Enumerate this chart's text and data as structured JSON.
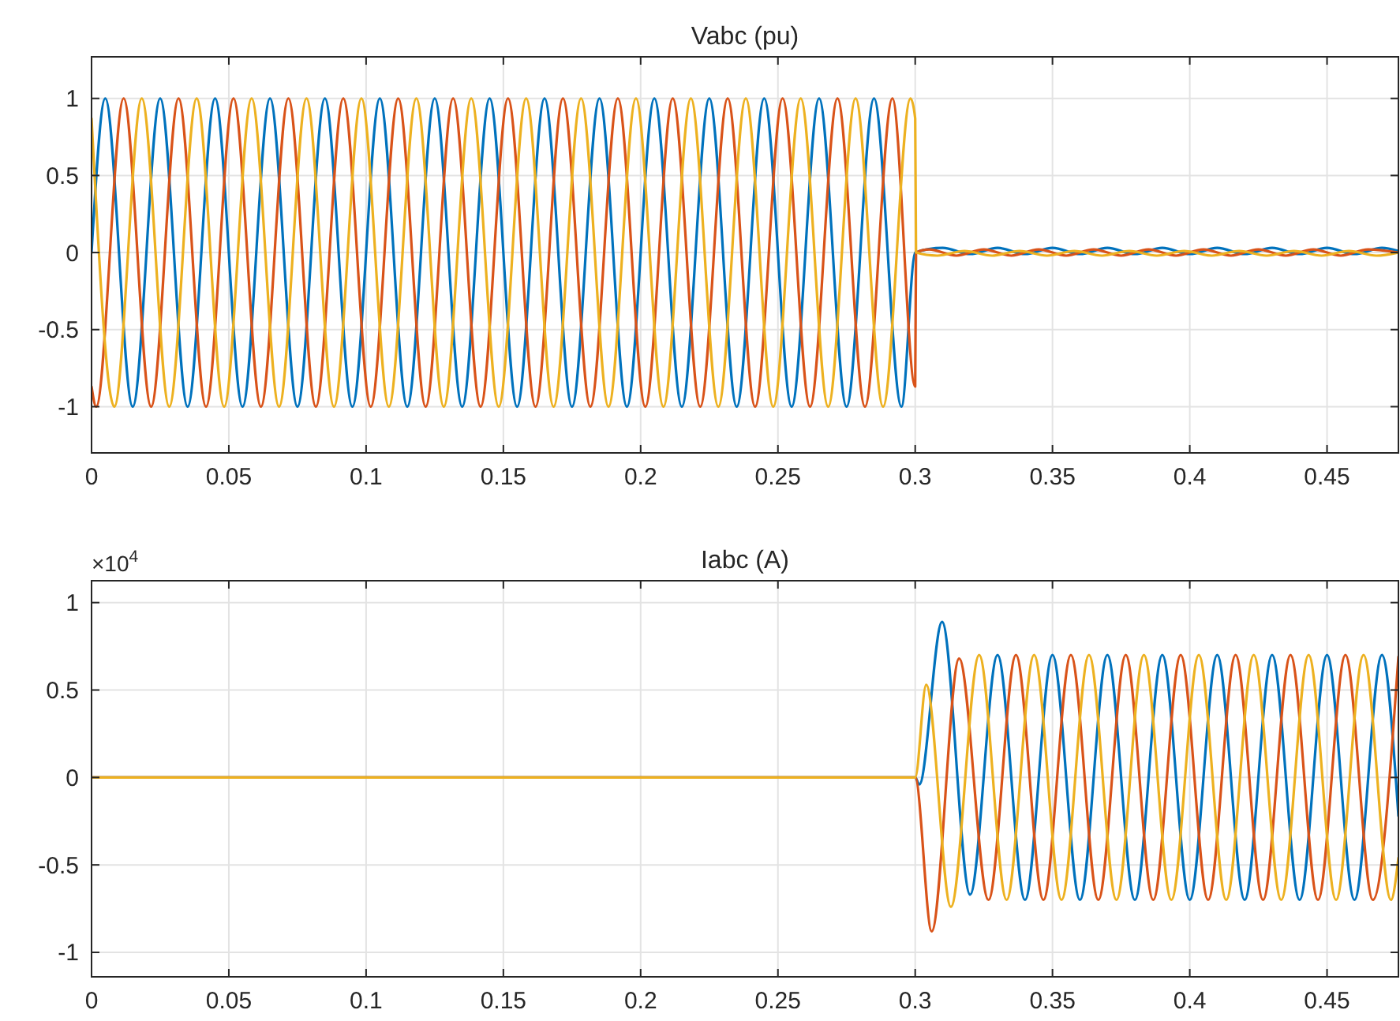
{
  "chart_data": [
    {
      "type": "line",
      "title": "Vabc (pu)",
      "xlim": [
        0,
        0.476
      ],
      "ylim": [
        -1.3,
        1.27
      ],
      "xticks": [
        0,
        0.05,
        0.1,
        0.15,
        0.2,
        0.25,
        0.3,
        0.35,
        0.4,
        0.45
      ],
      "yticks": [
        -1,
        -0.5,
        0,
        0.5,
        1
      ],
      "grid": true,
      "series": [
        {
          "color": "#0072bd",
          "x": [
            0,
            0.005,
            0.015,
            0.025,
            0.035,
            0.045,
            0.055,
            0.065,
            0.075,
            0.085,
            0.095,
            0.105,
            0.115,
            0.125,
            0.135,
            0.145,
            0.155,
            0.165,
            0.175,
            0.185,
            0.195,
            0.205,
            0.215,
            0.225,
            0.235,
            0.245,
            0.255,
            0.265,
            0.275,
            0.285,
            0.295,
            0.3,
            0.31,
            0.32,
            0.33,
            0.34,
            0.35,
            0.36,
            0.37,
            0.38,
            0.39,
            0.4,
            0.41,
            0.42,
            0.43,
            0.44,
            0.45,
            0.46,
            0.47,
            0.476
          ],
          "values": [
            0,
            1,
            -1,
            1,
            -1,
            1,
            -1,
            1,
            -1,
            1,
            -1,
            1,
            -1,
            1,
            -1,
            1,
            -1,
            1,
            -1,
            1,
            -1,
            1,
            -1,
            1,
            -1,
            1,
            -1,
            1,
            -1,
            1,
            -1,
            0,
            0.03,
            -0.01,
            0.03,
            -0.01,
            0.03,
            -0.01,
            0.03,
            -0.01,
            0.03,
            -0.01,
            0.03,
            -0.01,
            0.03,
            -0.01,
            0.03,
            -0.01,
            0.03,
            0.01
          ]
        },
        {
          "color": "#d95319",
          "x": [
            0,
            0.0017,
            0.0117,
            0.0217,
            0.0317,
            0.0417,
            0.0517,
            0.0617,
            0.0717,
            0.0817,
            0.0917,
            0.1017,
            0.1117,
            0.1217,
            0.1317,
            0.1417,
            0.1517,
            0.1617,
            0.1717,
            0.1817,
            0.1917,
            0.2017,
            0.2117,
            0.2217,
            0.2317,
            0.2417,
            0.2517,
            0.2617,
            0.2717,
            0.2817,
            0.2917,
            0.3,
            0.3003,
            0.305,
            0.315,
            0.325,
            0.335,
            0.345,
            0.355,
            0.365,
            0.375,
            0.385,
            0.395,
            0.405,
            0.415,
            0.425,
            0.435,
            0.445,
            0.455,
            0.465,
            0.476
          ],
          "values": [
            -0.87,
            -1,
            1,
            -1,
            1,
            -1,
            1,
            -1,
            1,
            -1,
            1,
            -1,
            1,
            -1,
            1,
            -1,
            1,
            -1,
            1,
            -1,
            1,
            -1,
            1,
            -1,
            1,
            -1,
            1,
            -1,
            1,
            -1,
            1,
            -0.87,
            0,
            0.02,
            -0.02,
            0.02,
            -0.02,
            0.02,
            -0.02,
            0.02,
            -0.02,
            0.02,
            -0.02,
            0.02,
            -0.02,
            0.02,
            -0.02,
            0.02,
            -0.02,
            0.02,
            0
          ]
        },
        {
          "color": "#edb120",
          "x": [
            0,
            0.0083,
            0.0183,
            0.0283,
            0.0383,
            0.0483,
            0.0583,
            0.0683,
            0.0783,
            0.0883,
            0.0983,
            0.1083,
            0.1183,
            0.1283,
            0.1383,
            0.1483,
            0.1583,
            0.1683,
            0.1783,
            0.1883,
            0.1983,
            0.2083,
            0.2183,
            0.2283,
            0.2383,
            0.2483,
            0.2583,
            0.2683,
            0.2783,
            0.2883,
            0.2983,
            0.3,
            0.3003,
            0.308,
            0.318,
            0.328,
            0.338,
            0.348,
            0.358,
            0.368,
            0.378,
            0.388,
            0.398,
            0.408,
            0.418,
            0.428,
            0.438,
            0.448,
            0.458,
            0.468,
            0.476
          ],
          "values": [
            0.87,
            -1,
            1,
            -1,
            1,
            -1,
            1,
            -1,
            1,
            -1,
            1,
            -1,
            1,
            -1,
            1,
            -1,
            1,
            -1,
            1,
            -1,
            1,
            -1,
            1,
            -1,
            1,
            -1,
            1,
            -1,
            1,
            -1,
            1,
            0.87,
            0,
            -0.02,
            0.01,
            -0.02,
            0.01,
            -0.02,
            0.01,
            -0.02,
            0.01,
            -0.02,
            0.01,
            -0.02,
            0.01,
            -0.02,
            0.01,
            -0.02,
            0.01,
            -0.02,
            0
          ]
        }
      ]
    },
    {
      "type": "line",
      "title": "Iabc (A)",
      "annotations": [
        "×10$^{4}$"
      ],
      "xlim": [
        0,
        0.476
      ],
      "ylim": [
        -1.14,
        1.125
      ],
      "xticks": [
        0,
        0.05,
        0.1,
        0.15,
        0.2,
        0.25,
        0.3,
        0.35,
        0.4,
        0.45
      ],
      "yticks": [
        -1,
        -0.5,
        0,
        0.5,
        1
      ],
      "grid": true,
      "series": [
        {
          "color": "#0072bd",
          "x": [
            0,
            0.3,
            0.3015,
            0.3098,
            0.32,
            0.33,
            0.34,
            0.35,
            0.36,
            0.37,
            0.38,
            0.39,
            0.4,
            0.41,
            0.42,
            0.43,
            0.44,
            0.45,
            0.46,
            0.47,
            0.476
          ],
          "values": [
            0,
            0,
            -0.04,
            0.89,
            -0.67,
            0.7,
            -0.7,
            0.7,
            -0.7,
            0.7,
            -0.7,
            0.7,
            -0.7,
            0.7,
            -0.7,
            0.7,
            -0.7,
            0.7,
            -0.7,
            0.7,
            -0.22
          ]
        },
        {
          "color": "#d95319",
          "x": [
            0,
            0.3,
            0.306,
            0.316,
            0.3267,
            0.3367,
            0.3467,
            0.3567,
            0.3667,
            0.3767,
            0.3867,
            0.3967,
            0.4067,
            0.4167,
            0.4267,
            0.4367,
            0.4467,
            0.4567,
            0.4667,
            0.476
          ],
          "values": [
            0,
            0,
            -0.88,
            0.68,
            -0.7,
            0.7,
            -0.7,
            0.7,
            -0.7,
            0.7,
            -0.7,
            0.7,
            -0.7,
            0.7,
            -0.7,
            0.7,
            -0.7,
            0.7,
            -0.7,
            0.69
          ]
        },
        {
          "color": "#edb120",
          "x": [
            0,
            0.3,
            0.304,
            0.313,
            0.3233,
            0.3333,
            0.3433,
            0.3533,
            0.3633,
            0.3733,
            0.3833,
            0.3933,
            0.4033,
            0.4133,
            0.4233,
            0.4333,
            0.4433,
            0.4533,
            0.4633,
            0.4733,
            0.476
          ],
          "values": [
            0,
            0,
            0.53,
            -0.74,
            0.7,
            -0.7,
            0.7,
            -0.7,
            0.7,
            -0.7,
            0.7,
            -0.7,
            0.7,
            -0.7,
            0.7,
            -0.7,
            0.7,
            -0.7,
            0.7,
            -0.7,
            -0.46
          ]
        }
      ]
    }
  ]
}
